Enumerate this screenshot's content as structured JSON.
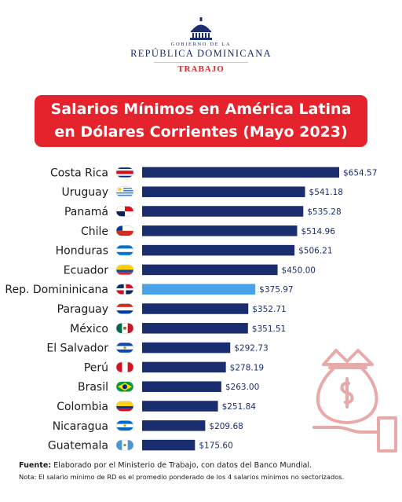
{
  "header": {
    "line1": "GOBIERNO DE LA",
    "line2": "REPÚBLICA DOMINICANA",
    "line3": "TRABAJO",
    "emblem_icon": "government-building-dome-icon"
  },
  "colors": {
    "title_bg": "#e4232d",
    "bar": "#1a2d6e",
    "bar_highlight": "#4aa3e8",
    "value_text": "#1a2d6e",
    "deco": "#e9a9a9"
  },
  "chart_data": {
    "type": "bar",
    "orientation": "horizontal",
    "title_lines": [
      "Salarios Mínimos en América Latina",
      "en Dólares Corrientes (Mayo 2023)"
    ],
    "xlabel": "",
    "ylabel": "",
    "xlim": [
      0,
      654.57
    ],
    "grid": false,
    "legend": "none",
    "highlight_category": "Rep. Domininicana",
    "categories": [
      "Costa Rica",
      "Uruguay",
      "Panamá",
      "Chile",
      "Honduras",
      "Ecuador",
      "Rep. Domininicana",
      "Paraguay",
      "México",
      "El Salvador",
      "Perú",
      "Brasil",
      "Colombia",
      "Nicaragua",
      "Guatemala"
    ],
    "values": [
      654.57,
      541.18,
      535.28,
      514.96,
      506.21,
      450.0,
      375.97,
      352.71,
      351.51,
      292.73,
      278.19,
      263.0,
      251.84,
      209.68,
      175.6
    ],
    "value_labels": [
      "$654.57",
      "$541.18",
      "$535.28",
      "$514.96",
      "$506.21",
      "$450.00",
      "$375.97",
      "$352.71",
      "$351.51",
      "$292.73",
      "$278.19",
      "$263.00",
      "$251.84",
      "$209.68",
      "$175.60"
    ],
    "flag_icons": [
      "costa-rica-flag-icon",
      "uruguay-flag-icon",
      "panama-flag-icon",
      "chile-flag-icon",
      "honduras-flag-icon",
      "ecuador-flag-icon",
      "dominican-republic-flag-icon",
      "paraguay-flag-icon",
      "mexico-flag-icon",
      "el-salvador-flag-icon",
      "peru-flag-icon",
      "brazil-flag-icon",
      "colombia-flag-icon",
      "nicaragua-flag-icon",
      "guatemala-flag-icon"
    ]
  },
  "footer": {
    "source_label": "Fuente:",
    "source_text": " Elaborado por el Ministerio de Trabajo, con datos del Banco Mundial.",
    "note": "Nota: El salario mínimo de RD es el promedio ponderado de los 4 salarios mínimos no sectorizados."
  },
  "decoration_icon": "hand-holding-money-bag-icon"
}
